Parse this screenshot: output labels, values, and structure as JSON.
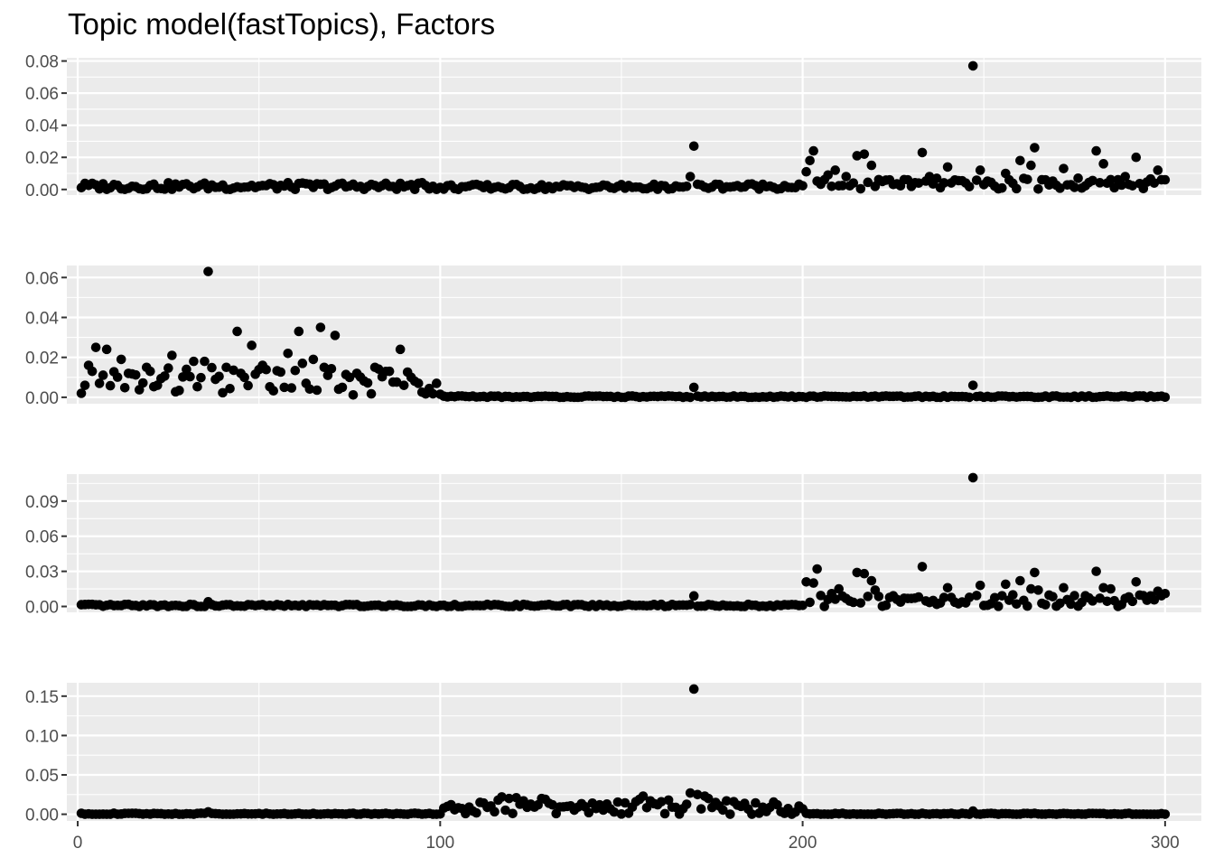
{
  "chart_data": {
    "type": "scatter",
    "title": "Topic model(fastTopics), Factors",
    "xlabel": "",
    "ylabel": "",
    "xlim": [
      -3,
      310
    ],
    "x_ticks": [
      0,
      100,
      200,
      300
    ],
    "x_tick_labels": [
      "0",
      "100",
      "200",
      "300"
    ],
    "grid": true,
    "panel_background": "#EBEBEB",
    "grid_color": "#FFFFFF",
    "point_color": "#000000",
    "legend": "none",
    "panels": [
      {
        "ylim": [
          -0.0035,
          0.082
        ],
        "y_ticks": [
          0.0,
          0.02,
          0.04,
          0.06,
          0.08
        ],
        "y_tick_labels": [
          "0.00",
          "0.02",
          "0.04",
          "0.06",
          "0.08"
        ],
        "baseline": [
          {
            "x": [
              1,
              100
            ],
            "level": 0.002,
            "amp": 0.0022
          },
          {
            "x": [
              101,
              160
            ],
            "level": 0.0015,
            "amp": 0.0018
          },
          {
            "x": [
              161,
              200
            ],
            "level": 0.002,
            "amp": 0.0018
          },
          {
            "x": [
              201,
              300
            ],
            "level": 0.0035,
            "amp": 0.0035
          }
        ],
        "highlights": [
          {
            "x": 170,
            "y": 0.027
          },
          {
            "x": 169,
            "y": 0.008
          },
          {
            "x": 201,
            "y": 0.011
          },
          {
            "x": 202,
            "y": 0.018
          },
          {
            "x": 203,
            "y": 0.024
          },
          {
            "x": 206,
            "y": 0.006
          },
          {
            "x": 207,
            "y": 0.009
          },
          {
            "x": 209,
            "y": 0.012
          },
          {
            "x": 212,
            "y": 0.008
          },
          {
            "x": 215,
            "y": 0.021
          },
          {
            "x": 217,
            "y": 0.022
          },
          {
            "x": 219,
            "y": 0.015
          },
          {
            "x": 222,
            "y": 0.005
          },
          {
            "x": 233,
            "y": 0.023
          },
          {
            "x": 235,
            "y": 0.008
          },
          {
            "x": 240,
            "y": 0.014
          },
          {
            "x": 247,
            "y": 0.077
          },
          {
            "x": 249,
            "y": 0.012
          },
          {
            "x": 256,
            "y": 0.01
          },
          {
            "x": 260,
            "y": 0.018
          },
          {
            "x": 263,
            "y": 0.015
          },
          {
            "x": 264,
            "y": 0.026
          },
          {
            "x": 266,
            "y": 0.006
          },
          {
            "x": 272,
            "y": 0.013
          },
          {
            "x": 276,
            "y": 0.007
          },
          {
            "x": 281,
            "y": 0.024
          },
          {
            "x": 283,
            "y": 0.016
          },
          {
            "x": 287,
            "y": 0.006
          },
          {
            "x": 289,
            "y": 0.008
          },
          {
            "x": 292,
            "y": 0.02
          },
          {
            "x": 297,
            "y": 0.004
          },
          {
            "x": 298,
            "y": 0.012
          },
          {
            "x": 300,
            "y": 0.006
          }
        ]
      },
      {
        "ylim": [
          -0.0032,
          0.066
        ],
        "y_ticks": [
          0.0,
          0.02,
          0.04,
          0.06
        ],
        "y_tick_labels": [
          "0.00",
          "0.02",
          "0.04",
          "0.06"
        ],
        "baseline": [
          {
            "x": [
              1,
              100
            ],
            "level": 0.008,
            "amp": 0.007
          },
          {
            "x": [
              101,
              300
            ],
            "level": 0.0003,
            "amp": 0.0004
          }
        ],
        "highlights": [
          {
            "x": 1,
            "y": 0.002
          },
          {
            "x": 2,
            "y": 0.006
          },
          {
            "x": 3,
            "y": 0.016
          },
          {
            "x": 4,
            "y": 0.013
          },
          {
            "x": 5,
            "y": 0.025
          },
          {
            "x": 6,
            "y": 0.007
          },
          {
            "x": 8,
            "y": 0.024
          },
          {
            "x": 12,
            "y": 0.019
          },
          {
            "x": 14,
            "y": 0.012
          },
          {
            "x": 19,
            "y": 0.015
          },
          {
            "x": 20,
            "y": 0.013
          },
          {
            "x": 26,
            "y": 0.021
          },
          {
            "x": 30,
            "y": 0.014
          },
          {
            "x": 32,
            "y": 0.018
          },
          {
            "x": 35,
            "y": 0.018
          },
          {
            "x": 36,
            "y": 0.063
          },
          {
            "x": 38,
            "y": 0.009
          },
          {
            "x": 41,
            "y": 0.015
          },
          {
            "x": 44,
            "y": 0.033
          },
          {
            "x": 45,
            "y": 0.012
          },
          {
            "x": 46,
            "y": 0.01
          },
          {
            "x": 48,
            "y": 0.026
          },
          {
            "x": 51,
            "y": 0.016
          },
          {
            "x": 57,
            "y": 0.005
          },
          {
            "x": 58,
            "y": 0.022
          },
          {
            "x": 61,
            "y": 0.033
          },
          {
            "x": 62,
            "y": 0.017
          },
          {
            "x": 63,
            "y": 0.007
          },
          {
            "x": 65,
            "y": 0.019
          },
          {
            "x": 67,
            "y": 0.035
          },
          {
            "x": 68,
            "y": 0.015
          },
          {
            "x": 69,
            "y": 0.011
          },
          {
            "x": 71,
            "y": 0.031
          },
          {
            "x": 73,
            "y": 0.005
          },
          {
            "x": 75,
            "y": 0.01
          },
          {
            "x": 77,
            "y": 0.012
          },
          {
            "x": 82,
            "y": 0.015
          },
          {
            "x": 86,
            "y": 0.013
          },
          {
            "x": 89,
            "y": 0.024
          },
          {
            "x": 90,
            "y": 0.006
          },
          {
            "x": 92,
            "y": 0.01
          },
          {
            "x": 94,
            "y": 0.007
          },
          {
            "x": 99,
            "y": 0.007
          },
          {
            "x": 170,
            "y": 0.005
          },
          {
            "x": 247,
            "y": 0.006
          }
        ]
      },
      {
        "ylim": [
          -0.005,
          0.113
        ],
        "y_ticks": [
          0.0,
          0.03,
          0.06,
          0.09
        ],
        "y_tick_labels": [
          "0.00",
          "0.03",
          "0.06",
          "0.09"
        ],
        "baseline": [
          {
            "x": [
              1,
              200
            ],
            "level": 0.0008,
            "amp": 0.001
          },
          {
            "x": [
              201,
              300
            ],
            "level": 0.005,
            "amp": 0.005
          }
        ],
        "highlights": [
          {
            "x": 36,
            "y": 0.004
          },
          {
            "x": 170,
            "y": 0.009
          },
          {
            "x": 201,
            "y": 0.021
          },
          {
            "x": 203,
            "y": 0.02
          },
          {
            "x": 204,
            "y": 0.032
          },
          {
            "x": 208,
            "y": 0.011
          },
          {
            "x": 210,
            "y": 0.015
          },
          {
            "x": 215,
            "y": 0.029
          },
          {
            "x": 217,
            "y": 0.028
          },
          {
            "x": 219,
            "y": 0.022
          },
          {
            "x": 220,
            "y": 0.014
          },
          {
            "x": 233,
            "y": 0.034
          },
          {
            "x": 240,
            "y": 0.016
          },
          {
            "x": 247,
            "y": 0.11
          },
          {
            "x": 249,
            "y": 0.018
          },
          {
            "x": 256,
            "y": 0.019
          },
          {
            "x": 260,
            "y": 0.022
          },
          {
            "x": 263,
            "y": 0.015
          },
          {
            "x": 264,
            "y": 0.029
          },
          {
            "x": 265,
            "y": 0.014
          },
          {
            "x": 272,
            "y": 0.016
          },
          {
            "x": 281,
            "y": 0.03
          },
          {
            "x": 283,
            "y": 0.016
          },
          {
            "x": 285,
            "y": 0.015
          },
          {
            "x": 292,
            "y": 0.021
          },
          {
            "x": 298,
            "y": 0.013
          },
          {
            "x": 300,
            "y": 0.011
          }
        ]
      },
      {
        "ylim": [
          -0.0085,
          0.167
        ],
        "y_ticks": [
          0.0,
          0.05,
          0.1,
          0.15
        ],
        "y_tick_labels": [
          "0.00",
          "0.05",
          "0.10",
          "0.15"
        ],
        "baseline": [
          {
            "x": [
              1,
              100
            ],
            "level": 0.0005,
            "amp": 0.0008
          },
          {
            "x": [
              101,
              200
            ],
            "level": 0.008,
            "amp": 0.008
          },
          {
            "x": [
              201,
              300
            ],
            "level": 0.0005,
            "amp": 0.0008
          }
        ],
        "highlights": [
          {
            "x": 36,
            "y": 0.003
          },
          {
            "x": 102,
            "y": 0.01
          },
          {
            "x": 116,
            "y": 0.018
          },
          {
            "x": 117,
            "y": 0.022
          },
          {
            "x": 119,
            "y": 0.02
          },
          {
            "x": 121,
            "y": 0.021
          },
          {
            "x": 123,
            "y": 0.017
          },
          {
            "x": 126,
            "y": 0.009
          },
          {
            "x": 128,
            "y": 0.02
          },
          {
            "x": 129,
            "y": 0.019
          },
          {
            "x": 130,
            "y": 0.014
          },
          {
            "x": 135,
            "y": 0.01
          },
          {
            "x": 138,
            "y": 0.009
          },
          {
            "x": 144,
            "y": 0.012
          },
          {
            "x": 146,
            "y": 0.013
          },
          {
            "x": 154,
            "y": 0.016
          },
          {
            "x": 155,
            "y": 0.019
          },
          {
            "x": 156,
            "y": 0.023
          },
          {
            "x": 158,
            "y": 0.017
          },
          {
            "x": 160,
            "y": 0.012
          },
          {
            "x": 163,
            "y": 0.018
          },
          {
            "x": 164,
            "y": 0.009
          },
          {
            "x": 167,
            "y": 0.007
          },
          {
            "x": 169,
            "y": 0.027
          },
          {
            "x": 170,
            "y": 0.159
          },
          {
            "x": 171,
            "y": 0.025
          },
          {
            "x": 173,
            "y": 0.023
          },
          {
            "x": 174,
            "y": 0.02
          },
          {
            "x": 176,
            "y": 0.015
          },
          {
            "x": 179,
            "y": 0.017
          },
          {
            "x": 181,
            "y": 0.016
          },
          {
            "x": 183,
            "y": 0.01
          },
          {
            "x": 189,
            "y": 0.009
          },
          {
            "x": 193,
            "y": 0.012
          },
          {
            "x": 200,
            "y": 0.007
          },
          {
            "x": 247,
            "y": 0.004
          }
        ]
      }
    ]
  }
}
